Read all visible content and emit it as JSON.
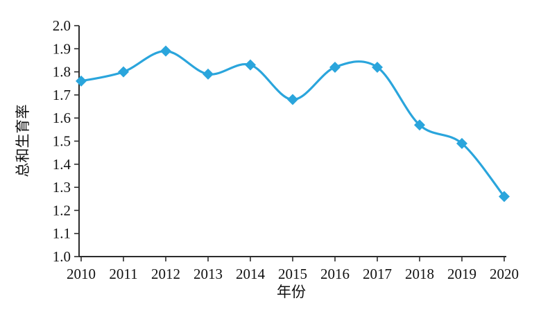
{
  "figure": {
    "background": "#ffffff",
    "text_color": "#111111",
    "axis_color": "#2b2b2b"
  },
  "chart_data": {
    "type": "line",
    "title": "",
    "xlabel": "年份",
    "ylabel": "总和生育率",
    "categories": [
      "2010",
      "2011",
      "2012",
      "2013",
      "2014",
      "2015",
      "2016",
      "2017",
      "2018",
      "2019",
      "2020"
    ],
    "series": [
      {
        "name": "总和生育率",
        "values": [
          1.76,
          1.8,
          1.89,
          1.79,
          1.83,
          1.68,
          1.82,
          1.82,
          1.57,
          1.49,
          1.26
        ],
        "color": "#2AA5DC",
        "marker": "diamond",
        "smooth": true,
        "line_width": 3.2
      }
    ],
    "ylim": [
      1.0,
      2.0
    ],
    "ytick_step": 0.1,
    "ytick_labels": [
      "1.0",
      "1.1",
      "1.2",
      "1.3",
      "1.4",
      "1.5",
      "1.6",
      "1.7",
      "1.8",
      "1.9",
      "2.0"
    ],
    "grid": "off",
    "legend_position": "none"
  }
}
